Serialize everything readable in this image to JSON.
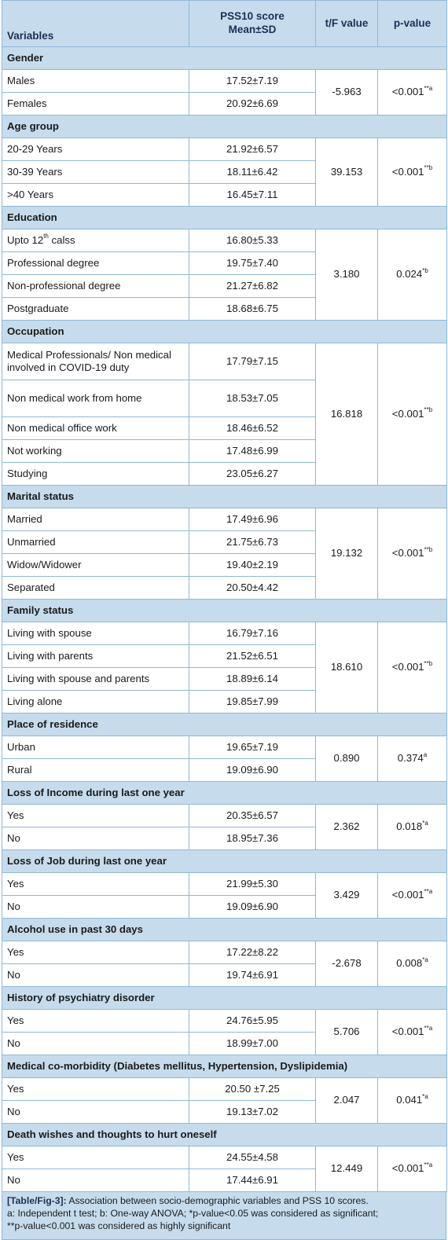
{
  "header": {
    "variables": "Variables",
    "score_line1": "PSS10 score",
    "score_line2": "Mean±SD",
    "tf": "t/F value",
    "pvalue": "p-value"
  },
  "groups": [
    {
      "name": "Gender",
      "tf": "-5.963",
      "p": "<0.001",
      "p_sup": "**a",
      "rows": [
        {
          "label": "Males",
          "mean": "17.52±7.19"
        },
        {
          "label": "Females",
          "mean": "20.92±6.69"
        }
      ]
    },
    {
      "name": "Age group",
      "tf": "39.153",
      "p": "<0.001",
      "p_sup": "**b",
      "rows": [
        {
          "label": "20-29 Years",
          "mean": "21.92±6.57"
        },
        {
          "label": "30-39 Years",
          "mean": "18.11±6.42"
        },
        {
          "label": ">40 Years",
          "mean": "16.45±7.11"
        }
      ]
    },
    {
      "name": "Education",
      "tf": "3.180",
      "p": "0.024",
      "p_sup": "*b",
      "rows": [
        {
          "label": "Upto 12",
          "label_sup": "th",
          "label_after": " calss",
          "mean": "16.80±5.33"
        },
        {
          "label": "Professional degree",
          "mean": "19.75±7.40"
        },
        {
          "label": "Non-professional degree",
          "mean": "21.27±6.82"
        },
        {
          "label": "Postgraduate",
          "mean": "18.68±6.75"
        }
      ]
    },
    {
      "name": "Occupation",
      "tf": "16.818",
      "p": "<0.001",
      "p_sup": "**b",
      "rows": [
        {
          "label": "Medical Professionals/ Non medical involved in COVID-19 duty",
          "mean": "17.79±7.15",
          "tall": true
        },
        {
          "label": "Non medical work from home",
          "mean": "18.53±7.05",
          "tall": true
        },
        {
          "label": "Non medical office work",
          "mean": "18.46±6.52"
        },
        {
          "label": "Not working",
          "mean": "17.48±6.99"
        },
        {
          "label": "Studying",
          "mean": "23.05±6.27"
        }
      ]
    },
    {
      "name": "Marital status",
      "tf": "19.132",
      "p": "<0.001",
      "p_sup": "**b",
      "rows": [
        {
          "label": "Married",
          "mean": "17.49±6.96"
        },
        {
          "label": "Unmarried",
          "mean": "21.75±6.73"
        },
        {
          "label": "Widow/Widower",
          "mean": "19.40±2.19"
        },
        {
          "label": "Separated",
          "mean": "20.50±4.42"
        }
      ]
    },
    {
      "name": "Family status",
      "tf": "18.610",
      "p": "<0.001",
      "p_sup": "**b",
      "rows": [
        {
          "label": "Living with spouse",
          "mean": "16.79±7.16"
        },
        {
          "label": "Living with parents",
          "mean": "21.52±6.51"
        },
        {
          "label": "Living with spouse and parents",
          "mean": "18.89±6.14"
        },
        {
          "label": "Living alone",
          "mean": "19.85±7.99"
        }
      ]
    },
    {
      "name": "Place of residence",
      "tf": "0.890",
      "p": "0.374",
      "p_sup": "a",
      "rows": [
        {
          "label": "Urban",
          "mean": "19.65±7.19"
        },
        {
          "label": "Rural",
          "mean": "19.09±6.90"
        }
      ]
    },
    {
      "name": "Loss of Income during last one year",
      "tf": "2.362",
      "p": "0.018",
      "p_sup": "*a",
      "rows": [
        {
          "label": "Yes",
          "mean": "20.35±6.57"
        },
        {
          "label": "No",
          "mean": "18.95±7.36"
        }
      ]
    },
    {
      "name": "Loss of Job during last one year",
      "tf": "3.429",
      "p": "<0.001",
      "p_sup": "**a",
      "rows": [
        {
          "label": "Yes",
          "mean": "21.99±5.30"
        },
        {
          "label": "No",
          "mean": "19.09±6.90"
        }
      ]
    },
    {
      "name": "Alcohol use in past 30 days",
      "tf": "-2.678",
      "p": "0.008",
      "p_sup": "*a",
      "rows": [
        {
          "label": "Yes",
          "mean": "17.22±8.22"
        },
        {
          "label": "No",
          "mean": "19.74±6.91"
        }
      ]
    },
    {
      "name": "History of psychiatry disorder",
      "tf": "5.706",
      "p": "<0.001",
      "p_sup": "**a",
      "rows": [
        {
          "label": "Yes",
          "mean": "24.76±5.95"
        },
        {
          "label": "No",
          "mean": "18.99±7.00"
        }
      ]
    },
    {
      "name": "Medical co-morbidity (Diabetes mellitus, Hypertension, Dyslipidemia)",
      "tf": "2.047",
      "p": "0.041",
      "p_sup": "*a",
      "rows": [
        {
          "label": "Yes",
          "mean": "20.50 ±7.25"
        },
        {
          "label": "No",
          "mean": "19.13±7.02"
        }
      ]
    },
    {
      "name": "Death wishes and thoughts to hurt oneself",
      "tf": "12.449",
      "p": "<0.001",
      "p_sup": "**a",
      "rows": [
        {
          "label": "Yes",
          "mean": "24.55±4.58"
        },
        {
          "label": "No",
          "mean": "17.44±6.91"
        }
      ]
    }
  ],
  "footer": {
    "caption": "[Table/Fig-3]:",
    "title": " Association between socio-demographic variables and PSS 10 scores.",
    "note1": "a: Independent t test; b: One-way ANOVA; *p-value<0.05 was considered as significant;",
    "note2": "**p-value<0.001 was considered as highly significant"
  },
  "colors": {
    "header_bg": "#c6dcec",
    "border": "#8fb8d8",
    "header_text": "#1d2f55"
  }
}
